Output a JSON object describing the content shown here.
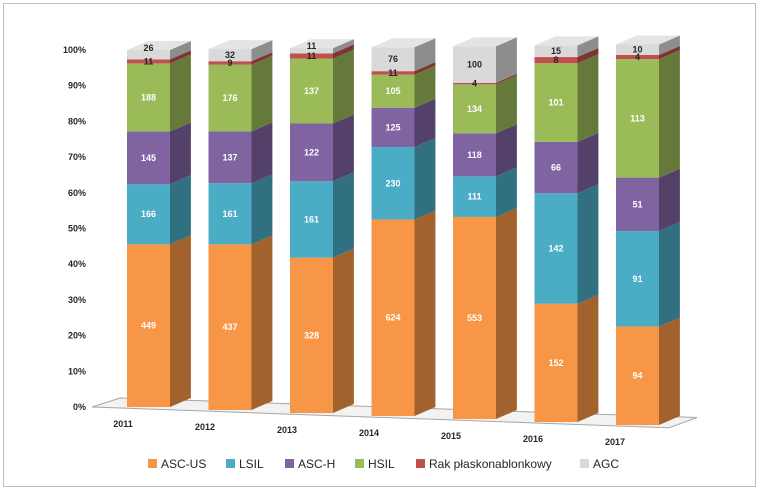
{
  "chart_data": {
    "type": "bar",
    "stacked": "percent",
    "title": "",
    "xlabel": "",
    "ylabel": "",
    "ylim": [
      0,
      100
    ],
    "yticks": [
      "0%",
      "10%",
      "20%",
      "30%",
      "40%",
      "50%",
      "60%",
      "70%",
      "80%",
      "90%",
      "100%"
    ],
    "categories": [
      "2011",
      "2012",
      "2013",
      "2014",
      "2015",
      "2016",
      "2017"
    ],
    "series": [
      {
        "name": "ASC-US",
        "color": "#f79646",
        "values": [
          449,
          437,
          328,
          624,
          553,
          152,
          94
        ]
      },
      {
        "name": "LSIL",
        "color": "#4bacc6",
        "values": [
          166,
          161,
          161,
          230,
          111,
          142,
          91
        ]
      },
      {
        "name": "ASC-H",
        "color": "#8064a2",
        "values": [
          145,
          137,
          122,
          125,
          118,
          66,
          51
        ]
      },
      {
        "name": "HSIL",
        "color": "#9bbb59",
        "values": [
          188,
          176,
          137,
          105,
          134,
          101,
          113
        ]
      },
      {
        "name": "Rak płaskonablonkowy",
        "color": "#c0504d",
        "values": [
          11,
          9,
          11,
          11,
          4,
          8,
          4
        ]
      },
      {
        "name": "AGC",
        "color": "#d9d9d9",
        "values": [
          26,
          32,
          11,
          76,
          100,
          15,
          10
        ]
      }
    ],
    "legend_position": "bottom",
    "grid": false,
    "style": "3d-columns"
  }
}
